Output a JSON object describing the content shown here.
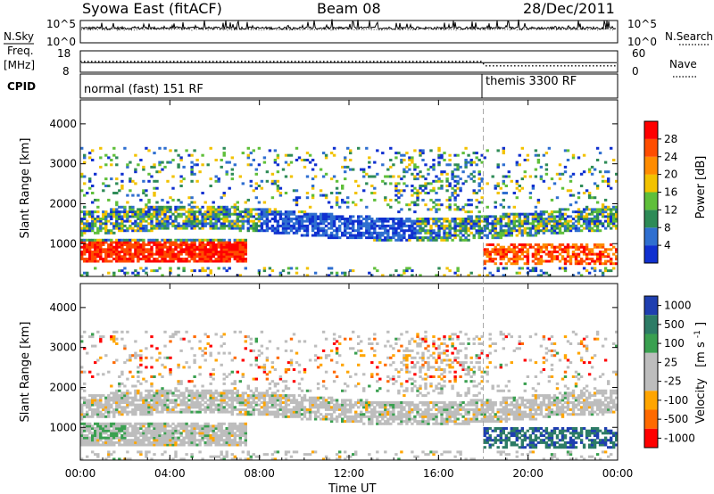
{
  "header": {
    "station": "Syowa East (fitACF)",
    "beam": "Beam 08",
    "date": "28/Dec/2011"
  },
  "left_labels": {
    "nsky": "N.Sky",
    "freq": "Freq.",
    "freq_unit": "[MHz]",
    "cpid": "CPID"
  },
  "right_labels": {
    "nsearch": "N.Search",
    "nave": "Nave"
  },
  "cpid_segments": [
    {
      "label": "normal (fast) 151 RF",
      "start_hour": 0
    },
    {
      "label": "themis 3300 RF",
      "start_hour": 18
    }
  ],
  "colors": {
    "power_scale": [
      "#1030d0",
      "#2f6fd0",
      "#2e8b57",
      "#5fbf3a",
      "#f2c200",
      "#ff8c00",
      "#ff4d00",
      "#ff0000"
    ],
    "velocity_scale": [
      "#1f3fb0",
      "#2d7c66",
      "#3aa050",
      "#bdbdbd",
      "#bdbdbd",
      "#ffa500",
      "#ff6a00",
      "#ff0000"
    ]
  },
  "chart_data": [
    {
      "type": "line",
      "name": "noise-panel",
      "left_ticks": [
        "10^5",
        "10^0"
      ],
      "right_ticks": [
        "10^5",
        "10^0"
      ]
    },
    {
      "type": "line",
      "name": "freq-panel",
      "left_ticks": [
        "18",
        "8"
      ],
      "right_ticks": [
        "60",
        "0"
      ],
      "left_ylim": [
        8,
        18
      ],
      "right_ylim": [
        0,
        60
      ],
      "freq_mhz_approx": 12.5,
      "nave_approx": [
        [
          0,
          30
        ],
        [
          17.9,
          30
        ],
        [
          18.1,
          18
        ],
        [
          24,
          18
        ]
      ]
    },
    {
      "type": "heatmap",
      "name": "power-panel",
      "ylabel": "Slant Range [km]",
      "ytick_labels": [
        "1000",
        "2000",
        "3000",
        "4000"
      ],
      "y_ticks": [
        1000,
        2000,
        3000,
        4000
      ],
      "ylim": [
        180,
        4600
      ],
      "xlim": [
        0,
        24
      ],
      "colorbar_label": "Power [dB]",
      "colorbar_ticks": [
        "4",
        "8",
        "12",
        "16",
        "20",
        "24",
        "28"
      ],
      "colorbar_range": [
        0,
        32
      ]
    },
    {
      "type": "heatmap",
      "name": "velocity-panel",
      "ylabel": "Slant Range [km]",
      "ytick_labels": [
        "1000",
        "2000",
        "3000",
        "4000"
      ],
      "y_ticks": [
        1000,
        2000,
        3000,
        4000
      ],
      "ylim": [
        180,
        4600
      ],
      "xlim": [
        0,
        24
      ],
      "colorbar_label": "Velocity",
      "colorbar_unit": "[m s",
      "colorbar_unit_sup": "-1",
      "colorbar_unit_end": "]",
      "colorbar_ticks": [
        "1000",
        "500",
        "100",
        "25",
        "-25",
        "-100",
        "-500",
        "-1000"
      ]
    }
  ],
  "x_axis": {
    "label": "Time UT",
    "tick_labels": [
      "00:00",
      "04:00",
      "08:00",
      "12:00",
      "16:00",
      "20:00",
      "00:00"
    ],
    "tick_hours": [
      0,
      4,
      8,
      12,
      16,
      20,
      24
    ]
  }
}
